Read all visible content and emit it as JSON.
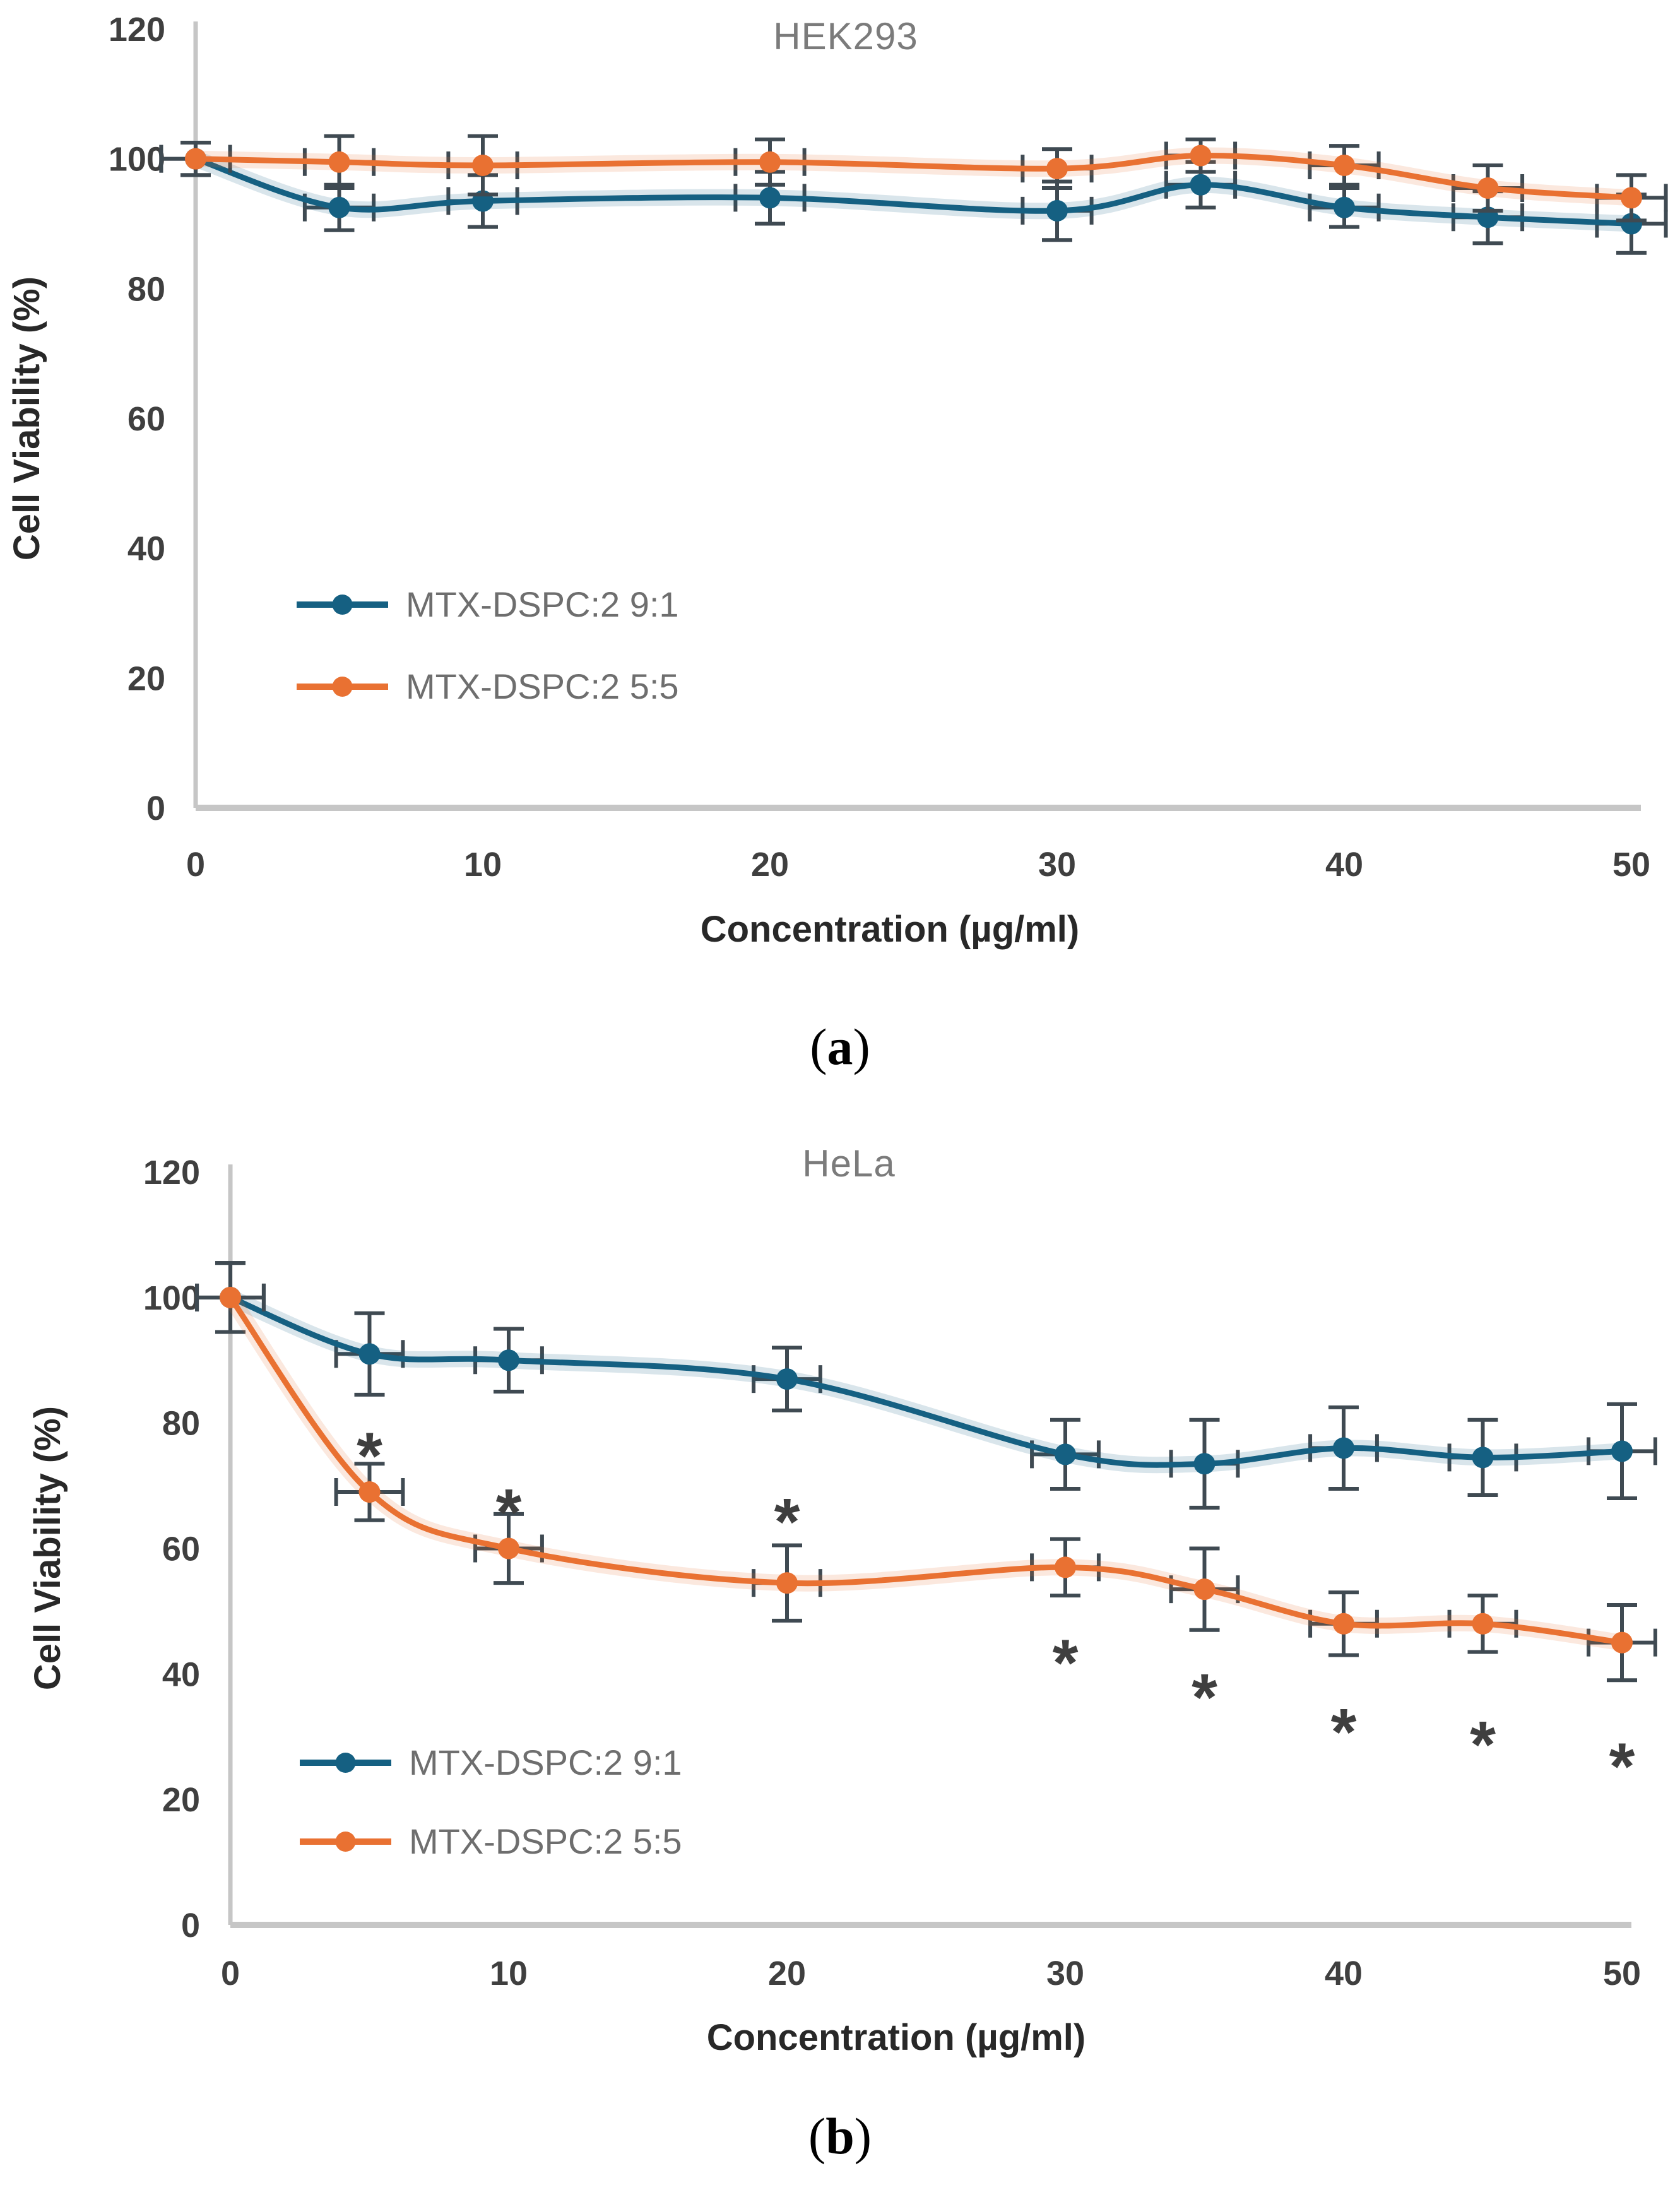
{
  "colors": {
    "series1": "#156082",
    "series2": "#E97132",
    "error_bar": "#3f4a52",
    "axis": "#c6c6c6",
    "tick_label": "#3f3f3f",
    "title": "#7b7b7b",
    "axis_title": "#282828",
    "legend_text": "#6e6e6e",
    "caption": "#000000"
  },
  "captions": {
    "a": {
      "open": "(",
      "letter": "a",
      "close": ")"
    },
    "b": {
      "open": "(",
      "letter": "b",
      "close": ")"
    }
  },
  "chart_data": [
    {
      "id": "hek293",
      "type": "line",
      "title": "HEK293",
      "xlabel": "Concentration (µg/ml)",
      "ylabel": "Cell Viability (%)",
      "xlim": [
        0,
        50
      ],
      "ylim": [
        0,
        120
      ],
      "x_ticks": [
        0,
        10,
        20,
        30,
        40,
        50
      ],
      "y_ticks": [
        0,
        20,
        40,
        60,
        80,
        100,
        120
      ],
      "grid": false,
      "legend_position": "inside-left-middle",
      "x": [
        0,
        5,
        10,
        20,
        30,
        35,
        40,
        45,
        50
      ],
      "series": [
        {
          "name": "MTX-DSPC:2 9:1",
          "color_key": "series1",
          "values": [
            100,
            92.5,
            93.5,
            94,
            92,
            96,
            92.5,
            91,
            90
          ],
          "y_err": [
            2.5,
            3.5,
            4,
            4,
            4.5,
            3.5,
            3,
            4,
            4.5
          ],
          "x_err": 1.2
        },
        {
          "name": "MTX-DSPC:2 5:5",
          "color_key": "series2",
          "values": [
            100,
            99.5,
            99,
            99.5,
            98.5,
            100.5,
            99,
            95.5,
            94
          ],
          "y_err": [
            2.5,
            4,
            4.5,
            3.5,
            3,
            2.5,
            3,
            3.5,
            3.5
          ],
          "x_err": 1.2
        }
      ],
      "annotations": []
    },
    {
      "id": "hela",
      "type": "line",
      "title": "HeLa",
      "xlabel": "Concentration (µg/ml)",
      "ylabel": "Cell Viability (%)",
      "xlim": [
        0,
        50
      ],
      "ylim": [
        0,
        120
      ],
      "x_ticks": [
        0,
        10,
        20,
        30,
        40,
        50
      ],
      "y_ticks": [
        0,
        20,
        40,
        60,
        80,
        100,
        120
      ],
      "grid": false,
      "legend_position": "inside-left-middle",
      "x": [
        0,
        5,
        10,
        20,
        30,
        35,
        40,
        45,
        50
      ],
      "series": [
        {
          "name": "MTX-DSPC:2 9:1",
          "color_key": "series1",
          "values": [
            100,
            91,
            90,
            87,
            75,
            73.5,
            76,
            74.5,
            75.5
          ],
          "y_err": [
            5.5,
            6.5,
            5,
            5,
            5.5,
            7,
            6.5,
            6,
            7.5
          ],
          "x_err": 1.2
        },
        {
          "name": "MTX-DSPC:2 5:5",
          "color_key": "series2",
          "values": [
            100,
            69,
            60,
            54.5,
            57,
            53.5,
            48,
            48,
            45
          ],
          "y_err": [
            5.5,
            4.5,
            5.5,
            6,
            4.5,
            6.5,
            5,
            4.5,
            6
          ],
          "x_err": 1.2
        }
      ],
      "annotations": [
        {
          "symbol": "*",
          "x": 5,
          "y": 77
        },
        {
          "symbol": "*",
          "x": 10,
          "y": 68
        },
        {
          "symbol": "*",
          "x": 20,
          "y": 66.5
        },
        {
          "symbol": "*",
          "x": 30,
          "y": 44
        },
        {
          "symbol": "*",
          "x": 35,
          "y": 38.5
        },
        {
          "symbol": "*",
          "x": 40,
          "y": 33
        },
        {
          "symbol": "*",
          "x": 45,
          "y": 31
        },
        {
          "symbol": "*",
          "x": 50,
          "y": 27.5
        }
      ]
    }
  ]
}
